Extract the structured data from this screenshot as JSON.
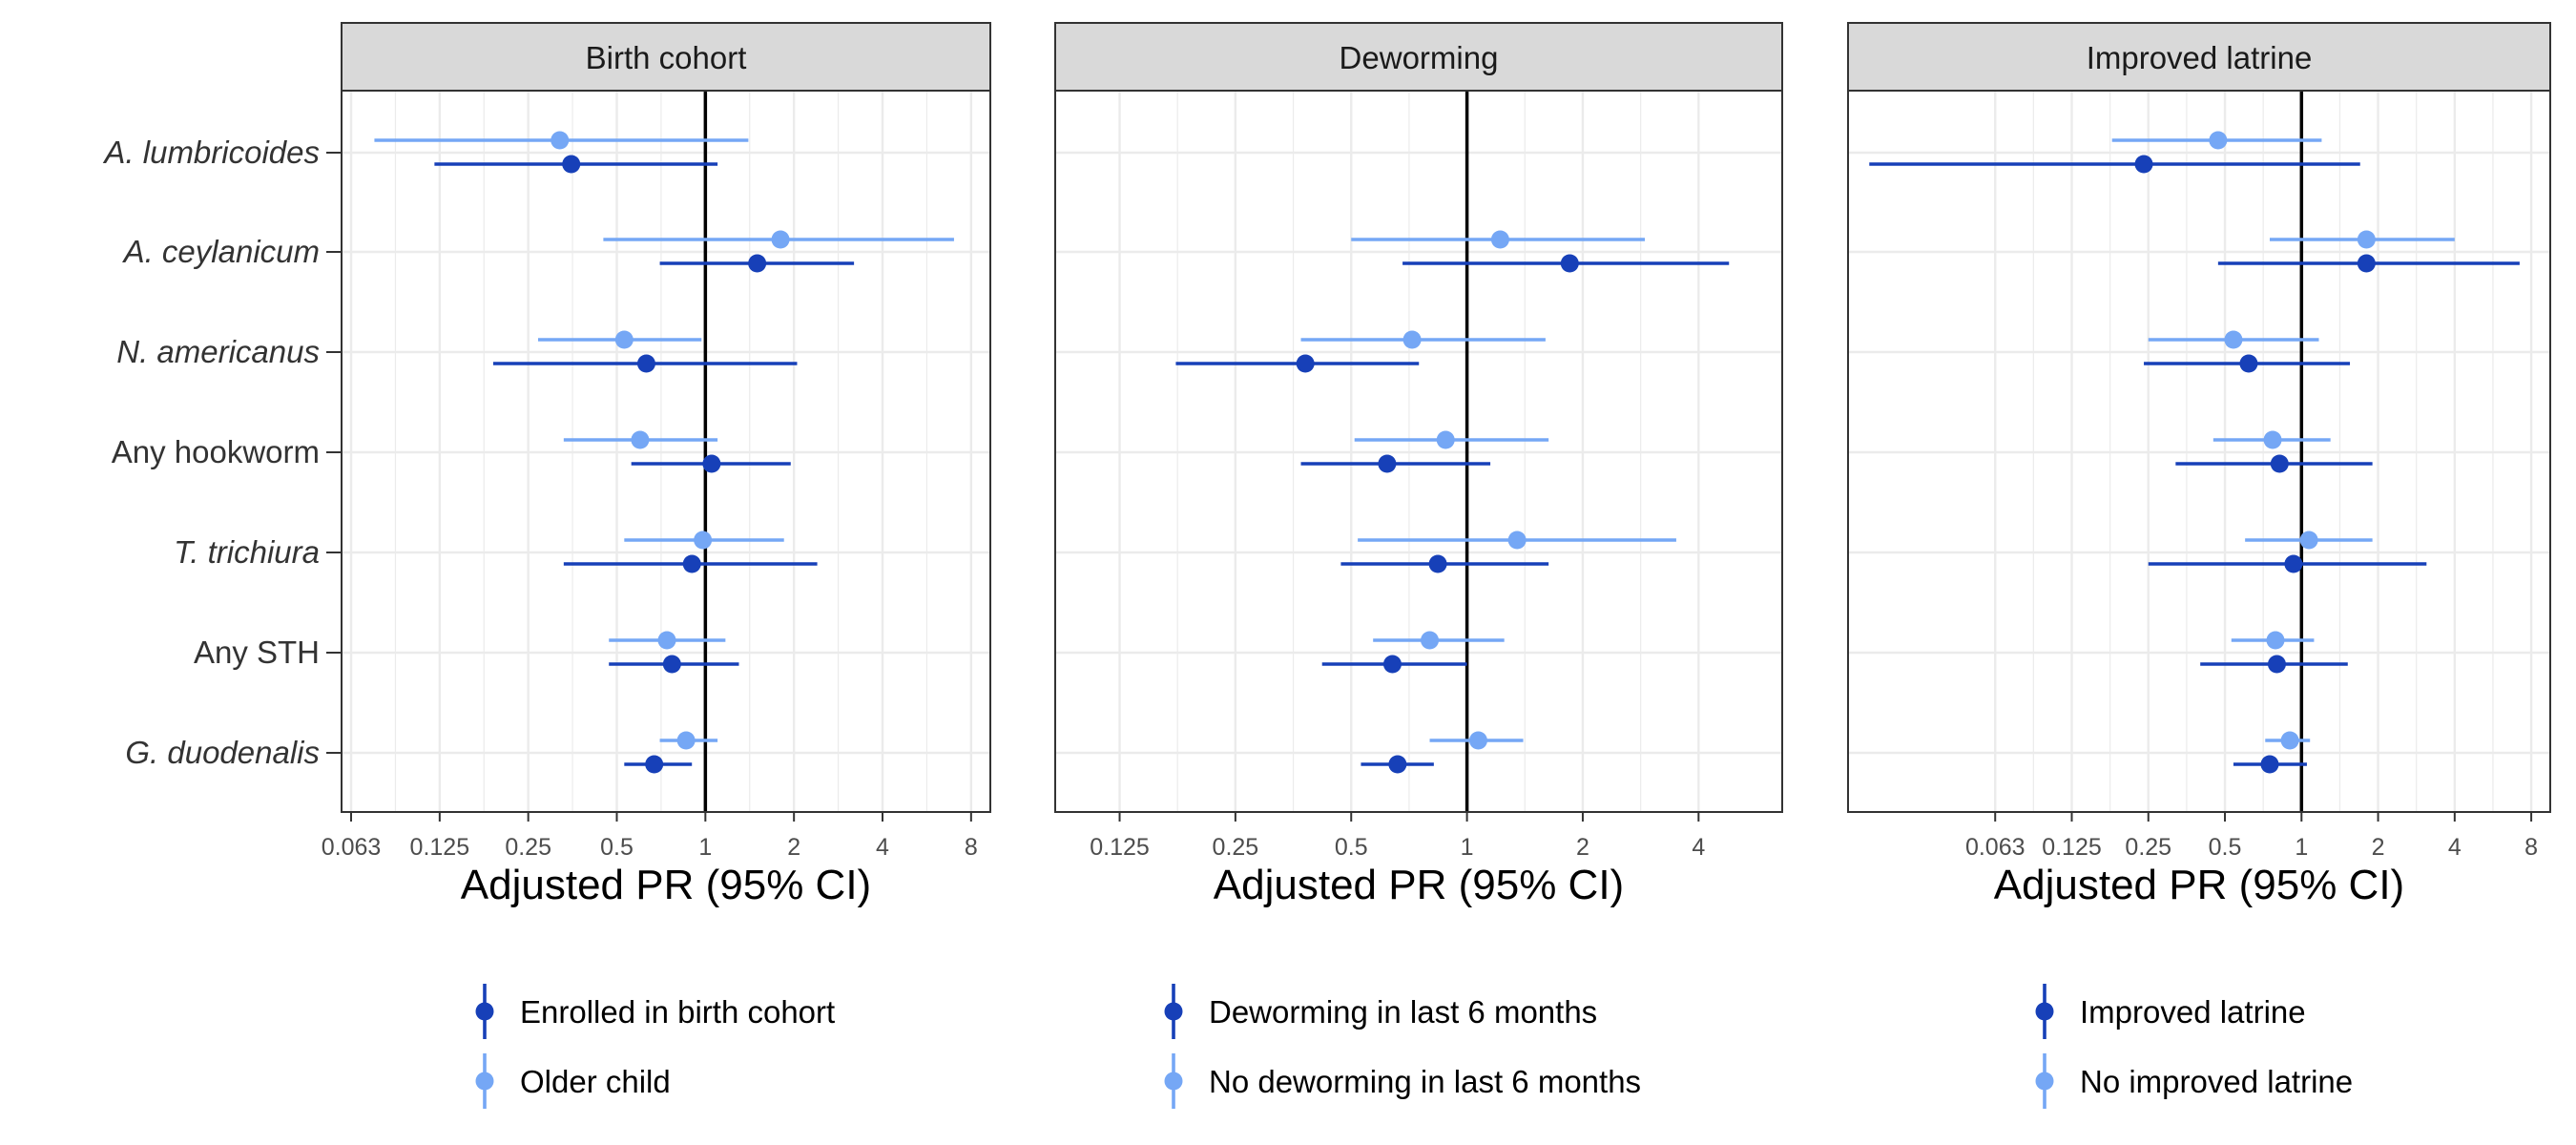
{
  "chart_data": {
    "type": "forest",
    "x_scale": "log2",
    "y_categories": [
      "A. lumbricoides",
      "A. ceylanicum",
      "N. americanus",
      "Any hookworm",
      "T. trichiura",
      "Any STH",
      "G. duodenalis"
    ],
    "italic_categories": [
      "A. lumbricoides",
      "A. ceylanicum",
      "N. americanus",
      "T. trichiura",
      "G. duodenalis"
    ],
    "grid": true,
    "reference_line_x": 1,
    "colors": {
      "dark": "#1740b8",
      "light": "#75a7f5",
      "strip_fill": "#d9d9d9",
      "grid": "#ebebeb",
      "border": "#333333"
    },
    "panels": [
      {
        "strip": "Birth cohort",
        "xlabel": "Adjusted PR (95% CI)",
        "xlim": [
          0.058,
          9.3
        ],
        "xticks": [
          0.0625,
          0.125,
          0.25,
          0.5,
          1,
          2,
          4,
          8
        ],
        "xtick_labels": [
          "0.063",
          "0.125",
          "0.25",
          "0.5",
          "1",
          "2",
          "4",
          "8"
        ],
        "legend": [
          "Enrolled in birth cohort",
          "Older child"
        ],
        "series": [
          {
            "name": "Enrolled in birth cohort",
            "tone": "dark",
            "points": [
              {
                "category": "A. lumbricoides",
                "est": 0.35,
                "low": 0.12,
                "high": 1.1
              },
              {
                "category": "A. ceylanicum",
                "est": 1.5,
                "low": 0.7,
                "high": 3.2
              },
              {
                "category": "N. americanus",
                "est": 0.63,
                "low": 0.19,
                "high": 2.05
              },
              {
                "category": "Any hookworm",
                "est": 1.05,
                "low": 0.56,
                "high": 1.95
              },
              {
                "category": "T. trichiura",
                "est": 0.9,
                "low": 0.33,
                "high": 2.4
              },
              {
                "category": "Any STH",
                "est": 0.77,
                "low": 0.47,
                "high": 1.3
              },
              {
                "category": "G. duodenalis",
                "est": 0.67,
                "low": 0.53,
                "high": 0.9
              }
            ]
          },
          {
            "name": "Older child",
            "tone": "light",
            "points": [
              {
                "category": "A. lumbricoides",
                "est": 0.32,
                "low": 0.075,
                "high": 1.4
              },
              {
                "category": "A. ceylanicum",
                "est": 1.8,
                "low": 0.45,
                "high": 7.0
              },
              {
                "category": "N. americanus",
                "est": 0.53,
                "low": 0.27,
                "high": 0.97
              },
              {
                "category": "Any hookworm",
                "est": 0.6,
                "low": 0.33,
                "high": 1.1
              },
              {
                "category": "T. trichiura",
                "est": 0.98,
                "low": 0.53,
                "high": 1.85
              },
              {
                "category": "Any STH",
                "est": 0.74,
                "low": 0.47,
                "high": 1.17
              },
              {
                "category": "G. duodenalis",
                "est": 0.86,
                "low": 0.7,
                "high": 1.1
              }
            ]
          }
        ]
      },
      {
        "strip": "Deworming",
        "xlabel": "Adjusted PR (95% CI)",
        "xlim": [
          0.085,
          6.6
        ],
        "xticks": [
          0.125,
          0.25,
          0.5,
          1,
          2,
          4
        ],
        "xtick_labels": [
          "0.125",
          "0.25",
          "0.5",
          "1",
          "2",
          "4"
        ],
        "legend": [
          "Deworming in last 6 months",
          "No deworming in last 6 months"
        ],
        "series": [
          {
            "name": "Deworming in last 6 months",
            "tone": "dark",
            "points": [
              {
                "category": "A. ceylanicum",
                "est": 1.85,
                "low": 0.68,
                "high": 4.8
              },
              {
                "category": "N. americanus",
                "est": 0.38,
                "low": 0.175,
                "high": 0.75
              },
              {
                "category": "Any hookworm",
                "est": 0.62,
                "low": 0.37,
                "high": 1.15
              },
              {
                "category": "T. trichiura",
                "est": 0.84,
                "low": 0.47,
                "high": 1.63
              },
              {
                "category": "Any STH",
                "est": 0.64,
                "low": 0.42,
                "high": 1.0
              },
              {
                "category": "G. duodenalis",
                "est": 0.66,
                "low": 0.53,
                "high": 0.82
              }
            ]
          },
          {
            "name": "No deworming in last 6 months",
            "tone": "light",
            "points": [
              {
                "category": "A. ceylanicum",
                "est": 1.22,
                "low": 0.5,
                "high": 2.9
              },
              {
                "category": "N. americanus",
                "est": 0.72,
                "low": 0.37,
                "high": 1.6
              },
              {
                "category": "Any hookworm",
                "est": 0.88,
                "low": 0.51,
                "high": 1.63
              },
              {
                "category": "T. trichiura",
                "est": 1.35,
                "low": 0.52,
                "high": 3.5
              },
              {
                "category": "Any STH",
                "est": 0.8,
                "low": 0.57,
                "high": 1.25
              },
              {
                "category": "G. duodenalis",
                "est": 1.07,
                "low": 0.8,
                "high": 1.4
              }
            ]
          }
        ]
      },
      {
        "strip": "Improved latrine",
        "xlabel": "Adjusted PR (95% CI)",
        "xlim": [
          0.0165,
          9.5
        ],
        "xticks": [
          0.0625,
          0.125,
          0.25,
          0.5,
          1,
          2,
          4,
          8
        ],
        "xtick_labels": [
          "0.063",
          "0.125",
          "0.25",
          "0.5",
          "1",
          "2",
          "4",
          "8"
        ],
        "legend": [
          "Improved latrine",
          "No improved latrine"
        ],
        "series": [
          {
            "name": "Improved latrine",
            "tone": "dark",
            "points": [
              {
                "category": "A. lumbricoides",
                "est": 0.24,
                "low": 0.02,
                "high": 1.7
              },
              {
                "category": "A. ceylanicum",
                "est": 1.8,
                "low": 0.47,
                "high": 7.2
              },
              {
                "category": "N. americanus",
                "est": 0.62,
                "low": 0.24,
                "high": 1.55
              },
              {
                "category": "Any hookworm",
                "est": 0.82,
                "low": 0.32,
                "high": 1.9
              },
              {
                "category": "T. trichiura",
                "est": 0.93,
                "low": 0.25,
                "high": 3.1
              },
              {
                "category": "Any STH",
                "est": 0.8,
                "low": 0.4,
                "high": 1.52
              },
              {
                "category": "G. duodenalis",
                "est": 0.75,
                "low": 0.54,
                "high": 1.05
              }
            ]
          },
          {
            "name": "No improved latrine",
            "tone": "light",
            "points": [
              {
                "category": "A. lumbricoides",
                "est": 0.47,
                "low": 0.18,
                "high": 1.2
              },
              {
                "category": "A. ceylanicum",
                "est": 1.8,
                "low": 0.75,
                "high": 4.0
              },
              {
                "category": "N. americanus",
                "est": 0.54,
                "low": 0.25,
                "high": 1.17
              },
              {
                "category": "Any hookworm",
                "est": 0.77,
                "low": 0.45,
                "high": 1.3
              },
              {
                "category": "T. trichiura",
                "est": 1.07,
                "low": 0.6,
                "high": 1.9
              },
              {
                "category": "Any STH",
                "est": 0.79,
                "low": 0.53,
                "high": 1.12
              },
              {
                "category": "G. duodenalis",
                "est": 0.9,
                "low": 0.72,
                "high": 1.08
              }
            ]
          }
        ]
      }
    ]
  }
}
